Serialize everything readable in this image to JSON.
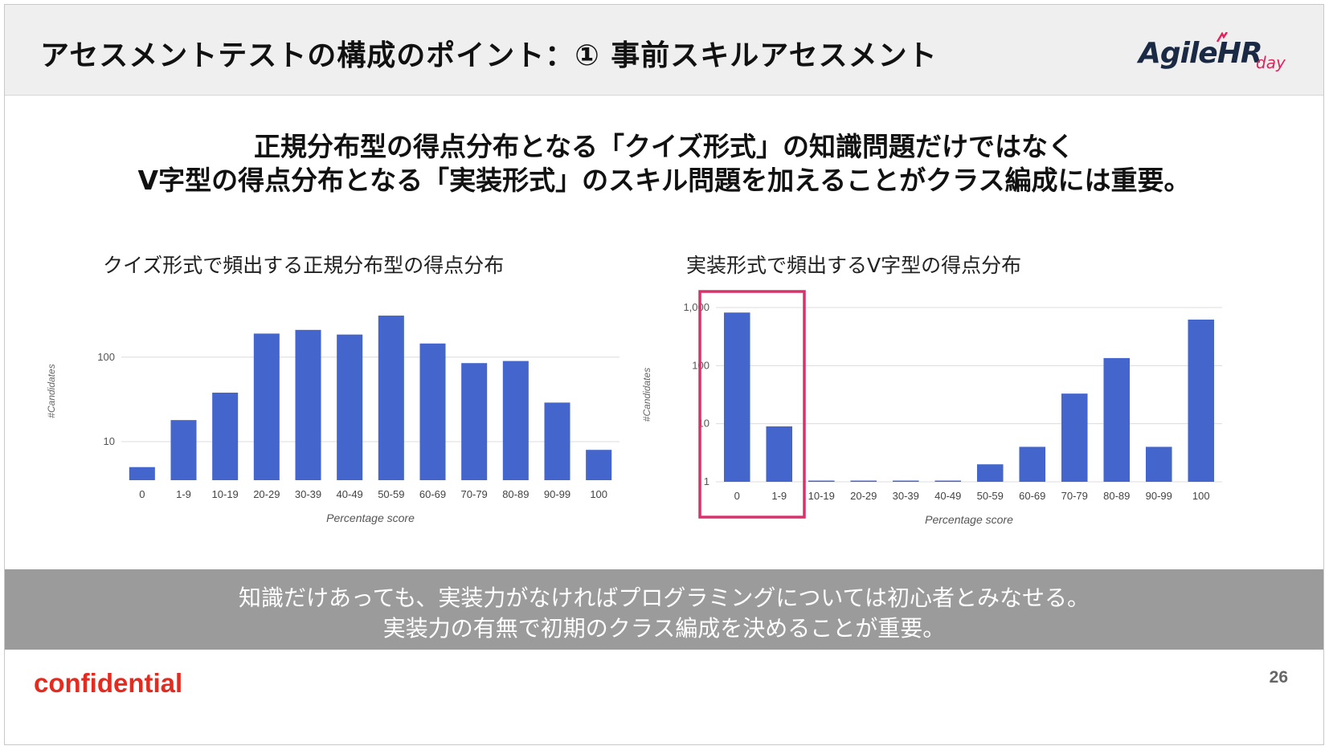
{
  "header": {
    "title": "アセスメントテストの構成のポイント：① 事前スキルアセスメント",
    "logo_main": "AgileHR",
    "logo_sub": "day"
  },
  "headline": {
    "line1": "正規分布型の得点分布となる「クイズ形式」の知識問題だけではなく",
    "line2": "V字型の得点分布となる「実装形式」のスキル問題を加えることがクラス編成には重要。"
  },
  "charts": {
    "left_title": "クイズ形式で頻出する正規分布型の得点分布",
    "right_title": "実装形式で頻出するV字型の得点分布"
  },
  "chart_data": [
    {
      "type": "bar",
      "title": "クイズ形式で頻出する正規分布型の得点分布",
      "xlabel": "Percentage score",
      "ylabel": "#Candidates",
      "scale": "log",
      "yticks": [
        10,
        100
      ],
      "ytick_labels": [
        "10",
        "100"
      ],
      "ylim": [
        3.5,
        450
      ],
      "grid": true,
      "categories": [
        "0",
        "1-9",
        "10-19",
        "20-29",
        "30-39",
        "40-49",
        "50-59",
        "60-69",
        "70-79",
        "80-89",
        "90-99",
        "100"
      ],
      "values": [
        5,
        18,
        38,
        190,
        210,
        185,
        310,
        145,
        85,
        90,
        29,
        8
      ],
      "color": "#4466cc"
    },
    {
      "type": "bar",
      "title": "実装形式で頻出するV字型の得点分布",
      "xlabel": "Percentage score",
      "ylabel": "#Candidates",
      "scale": "log",
      "yticks": [
        1,
        10,
        100,
        1000
      ],
      "ytick_labels": [
        "1",
        "10",
        "100",
        "1,000"
      ],
      "ylim": [
        1,
        1000
      ],
      "grid": true,
      "categories": [
        "0",
        "1-9",
        "10-19",
        "20-29",
        "30-39",
        "40-49",
        "50-59",
        "60-69",
        "70-79",
        "80-89",
        "90-99",
        "100"
      ],
      "values": [
        820,
        9,
        1,
        1,
        1,
        1,
        2,
        4,
        33,
        135,
        4,
        620
      ],
      "color": "#4466cc",
      "highlight": {
        "categories": [
          "0",
          "1-9"
        ],
        "color": "#d6336c"
      }
    }
  ],
  "band": {
    "line1": "知識だけあっても、実装力がなければプログラミングについては初心者とみなせる。",
    "line2": "実装力の有無で初期のクラス編成を決めることが重要。"
  },
  "footer": {
    "confidential": "confidential",
    "page_number": "26"
  }
}
